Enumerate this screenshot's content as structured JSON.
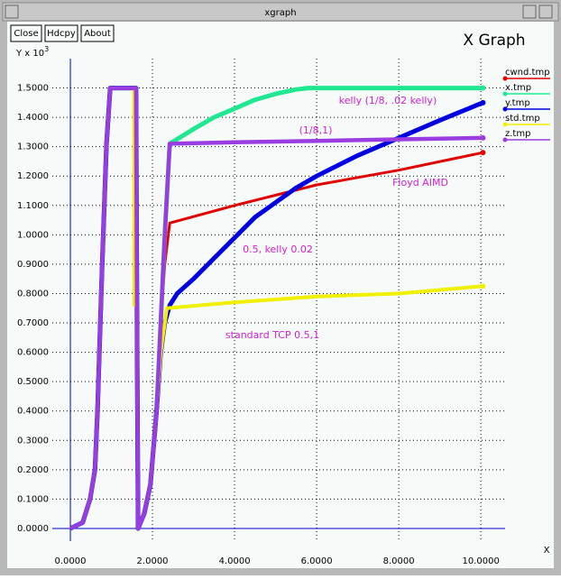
{
  "window": {
    "title": "xgraph",
    "buttons": [
      "Close",
      "Hdcpy",
      "About"
    ]
  },
  "chart_data": {
    "type": "line",
    "title": "X Graph",
    "ylabel": "Y x 10",
    "ylabel_exponent": "3",
    "xlabel": "X",
    "xlim": [
      -0.44,
      10.59
    ],
    "ylim": [
      -0.08,
      1.6
    ],
    "grid": true,
    "legend": "right",
    "xticks": [
      {
        "value": 0,
        "label": "0.0000"
      },
      {
        "value": 2,
        "label": "2.0000"
      },
      {
        "value": 4,
        "label": "4.0000"
      },
      {
        "value": 6,
        "label": "6.0000"
      },
      {
        "value": 8,
        "label": "8.0000"
      },
      {
        "value": 10,
        "label": "10.0000"
      }
    ],
    "yticks": [
      {
        "value": 0,
        "label": "0.0000"
      },
      {
        "value": 0.1,
        "label": "0.1000"
      },
      {
        "value": 0.2,
        "label": "0.2000"
      },
      {
        "value": 0.3,
        "label": "0.3000"
      },
      {
        "value": 0.4,
        "label": "0.4000"
      },
      {
        "value": 0.5,
        "label": "0.5000"
      },
      {
        "value": 0.6,
        "label": "0.6000"
      },
      {
        "value": 0.7,
        "label": "0.7000"
      },
      {
        "value": 0.8,
        "label": "0.8000"
      },
      {
        "value": 0.9,
        "label": "0.9000"
      },
      {
        "value": 1.0,
        "label": "1.0000"
      },
      {
        "value": 1.1,
        "label": "1.1000"
      },
      {
        "value": 1.2,
        "label": "1.2000"
      },
      {
        "value": 1.3,
        "label": "1.3000"
      },
      {
        "value": 1.4,
        "label": "1.4000"
      },
      {
        "value": 1.5,
        "label": "1.5000"
      }
    ],
    "series": [
      {
        "name": "cwnd.tmp",
        "color": "#e00000",
        "x": [
          0,
          0.3,
          0.48,
          0.6,
          0.66,
          0.77,
          0.88,
          0.97,
          1.6,
          1.62,
          1.65,
          1.8,
          1.95,
          2.1,
          2.2,
          2.3,
          2.42,
          4,
          6,
          8,
          10.05
        ],
        "values": [
          0,
          0.02,
          0.1,
          0.2,
          0.4,
          0.88,
          1.31,
          1.5,
          1.5,
          0.76,
          0,
          0.05,
          0.15,
          0.4,
          0.7,
          0.9,
          1.04,
          1.1,
          1.17,
          1.22,
          1.28
        ]
      },
      {
        "name": "x.tmp",
        "color": "#20e890",
        "x": [
          0,
          0.3,
          0.48,
          0.6,
          0.66,
          0.77,
          0.88,
          0.97,
          1.6,
          1.62,
          1.65,
          1.8,
          1.95,
          2.1,
          2.2,
          2.3,
          2.42,
          3,
          3.5,
          4,
          4.5,
          5,
          5.5,
          5.8,
          10.05
        ],
        "values": [
          0,
          0.02,
          0.1,
          0.2,
          0.4,
          0.88,
          1.31,
          1.5,
          1.5,
          0.76,
          0,
          0.05,
          0.15,
          0.4,
          0.7,
          1.0,
          1.31,
          1.36,
          1.4,
          1.43,
          1.46,
          1.48,
          1.495,
          1.5,
          1.5
        ]
      },
      {
        "name": "y.tmp",
        "color": "#0000e0",
        "x": [
          0,
          0.3,
          0.48,
          0.6,
          0.66,
          0.77,
          0.88,
          0.97,
          1.6,
          1.62,
          1.65,
          1.8,
          1.95,
          2.1,
          2.2,
          2.3,
          2.42,
          2.6,
          3,
          3.5,
          4,
          4.5,
          5,
          5.5,
          6,
          7,
          8,
          9,
          10.05
        ],
        "values": [
          0,
          0.02,
          0.1,
          0.2,
          0.4,
          0.88,
          1.31,
          1.5,
          1.5,
          0.76,
          0,
          0.05,
          0.15,
          0.4,
          0.6,
          0.7,
          0.76,
          0.8,
          0.85,
          0.92,
          0.99,
          1.06,
          1.11,
          1.16,
          1.2,
          1.27,
          1.33,
          1.39,
          1.45
        ]
      },
      {
        "name": "std.tmp",
        "color": "#f0f000",
        "x": [
          0,
          0.3,
          0.48,
          0.6,
          0.66,
          0.77,
          0.88,
          0.97,
          1.55,
          1.56,
          1.62,
          1.65,
          1.8,
          1.95,
          2.1,
          2.2,
          2.35,
          4,
          6,
          8,
          10.05
        ],
        "values": [
          0,
          0.02,
          0.1,
          0.2,
          0.4,
          0.88,
          1.31,
          1.5,
          1.5,
          0.76,
          0.76,
          0,
          0.05,
          0.15,
          0.4,
          0.6,
          0.75,
          0.77,
          0.79,
          0.8,
          0.825
        ]
      },
      {
        "name": "z.tmp",
        "color": "#9a3ce0",
        "x": [
          0,
          0.3,
          0.48,
          0.6,
          0.66,
          0.77,
          0.88,
          0.97,
          1.6,
          1.62,
          1.65,
          1.8,
          1.95,
          2.1,
          2.2,
          2.3,
          2.42,
          4,
          6,
          8,
          10.05
        ],
        "values": [
          0,
          0.02,
          0.1,
          0.2,
          0.4,
          0.88,
          1.31,
          1.5,
          1.5,
          0.76,
          0,
          0.05,
          0.15,
          0.4,
          0.7,
          1.0,
          1.31,
          1.315,
          1.32,
          1.325,
          1.33
        ]
      }
    ],
    "annotations": [
      "kelly (1/8, .02 kelly)",
      "(1/8,1)",
      "Floyd AIMD",
      "0.5, kelly 0.02",
      "standard TCP  0.5,1"
    ]
  }
}
